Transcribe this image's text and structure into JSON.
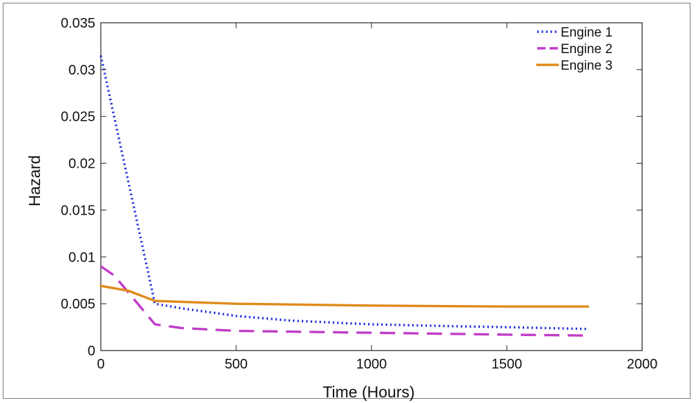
{
  "chart_data": {
    "type": "line",
    "title": "",
    "xlabel": "Time (Hours)",
    "ylabel": "Hazard",
    "xlim": [
      0,
      2000
    ],
    "ylim": [
      0,
      0.035
    ],
    "x_ticks": [
      0,
      500,
      1000,
      1500,
      2000
    ],
    "x_tick_labels": [
      "0",
      "500",
      "1000",
      "1500",
      "2000"
    ],
    "y_ticks": [
      0,
      0.005,
      0.01,
      0.015,
      0.02,
      0.025,
      0.03,
      0.035
    ],
    "y_tick_labels": [
      "0",
      "0.005",
      "0.01",
      "0.015",
      "0.02",
      "0.025",
      "0.03",
      "0.035"
    ],
    "grid": false,
    "legend_position": "top-right",
    "series": [
      {
        "name": "Engine 1",
        "color": "#1f2fdc",
        "style": "dotted",
        "x": [
          0,
          200,
          300,
          500,
          700,
          1000,
          1300,
          1500,
          1800
        ],
        "y": [
          0.0315,
          0.005,
          0.0045,
          0.0037,
          0.0032,
          0.0028,
          0.0026,
          0.0025,
          0.0023
        ]
      },
      {
        "name": "Engine 2",
        "color": "#c13cc9",
        "style": "dashed",
        "x": [
          0,
          50,
          200,
          300,
          500,
          1000,
          1500,
          1800
        ],
        "y": [
          0.009,
          0.008,
          0.0028,
          0.0024,
          0.0021,
          0.0019,
          0.0017,
          0.0016
        ]
      },
      {
        "name": "Engine 3",
        "color": "#e08a1a",
        "style": "solid",
        "x": [
          0,
          100,
          200,
          300,
          500,
          1000,
          1500,
          1800
        ],
        "y": [
          0.0069,
          0.0064,
          0.0053,
          0.0052,
          0.005,
          0.0048,
          0.0047,
          0.0047
        ]
      }
    ]
  }
}
